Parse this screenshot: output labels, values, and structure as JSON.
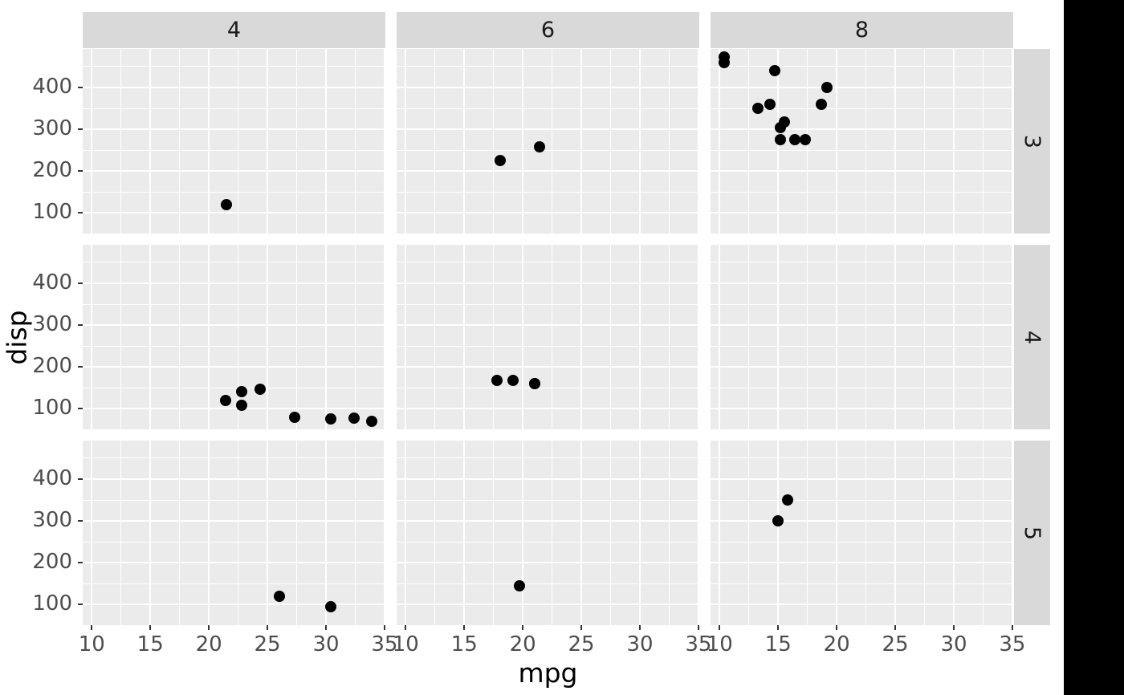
{
  "chart_data": {
    "type": "scatter",
    "title": "",
    "xlabel": "mpg",
    "ylabel": "disp",
    "facet": {
      "column_variable_levels": [
        "4",
        "6",
        "8"
      ],
      "row_variable_levels": [
        "3",
        "4",
        "5"
      ]
    },
    "x_axis": {
      "ticks": [
        10,
        15,
        20,
        25,
        30,
        35
      ],
      "minor_ticks": [
        12.5,
        17.5,
        22.5,
        27.5,
        32.5
      ],
      "domain": [
        9.225,
        35.075
      ]
    },
    "y_axis": {
      "ticks": [
        100,
        200,
        300,
        400
      ],
      "minor_ticks": [
        150,
        250,
        350,
        450
      ],
      "domain": [
        51.055,
        492.045
      ]
    },
    "grid": "on",
    "legend": "none",
    "points": [
      {
        "mpg": 21.5,
        "disp": 120.1,
        "cyl": "4",
        "gear": "3"
      },
      {
        "mpg": 22.8,
        "disp": 108.0,
        "cyl": "4",
        "gear": "4"
      },
      {
        "mpg": 24.4,
        "disp": 146.7,
        "cyl": "4",
        "gear": "4"
      },
      {
        "mpg": 22.8,
        "disp": 140.8,
        "cyl": "4",
        "gear": "4"
      },
      {
        "mpg": 32.4,
        "disp": 78.7,
        "cyl": "4",
        "gear": "4"
      },
      {
        "mpg": 30.4,
        "disp": 75.7,
        "cyl": "4",
        "gear": "4"
      },
      {
        "mpg": 33.9,
        "disp": 71.1,
        "cyl": "4",
        "gear": "4"
      },
      {
        "mpg": 27.3,
        "disp": 79.0,
        "cyl": "4",
        "gear": "4"
      },
      {
        "mpg": 21.4,
        "disp": 121.0,
        "cyl": "4",
        "gear": "4"
      },
      {
        "mpg": 26.0,
        "disp": 120.3,
        "cyl": "4",
        "gear": "5"
      },
      {
        "mpg": 30.4,
        "disp": 95.1,
        "cyl": "4",
        "gear": "5"
      },
      {
        "mpg": 21.4,
        "disp": 258.0,
        "cyl": "6",
        "gear": "3"
      },
      {
        "mpg": 18.1,
        "disp": 225.0,
        "cyl": "6",
        "gear": "3"
      },
      {
        "mpg": 21.0,
        "disp": 160.0,
        "cyl": "6",
        "gear": "4"
      },
      {
        "mpg": 21.0,
        "disp": 160.0,
        "cyl": "6",
        "gear": "4"
      },
      {
        "mpg": 19.2,
        "disp": 167.6,
        "cyl": "6",
        "gear": "4"
      },
      {
        "mpg": 17.8,
        "disp": 167.6,
        "cyl": "6",
        "gear": "4"
      },
      {
        "mpg": 19.7,
        "disp": 145.0,
        "cyl": "6",
        "gear": "5"
      },
      {
        "mpg": 18.7,
        "disp": 360.0,
        "cyl": "8",
        "gear": "3"
      },
      {
        "mpg": 14.3,
        "disp": 360.0,
        "cyl": "8",
        "gear": "3"
      },
      {
        "mpg": 16.4,
        "disp": 275.8,
        "cyl": "8",
        "gear": "3"
      },
      {
        "mpg": 17.3,
        "disp": 275.8,
        "cyl": "8",
        "gear": "3"
      },
      {
        "mpg": 15.2,
        "disp": 275.8,
        "cyl": "8",
        "gear": "3"
      },
      {
        "mpg": 10.4,
        "disp": 472.0,
        "cyl": "8",
        "gear": "3"
      },
      {
        "mpg": 10.4,
        "disp": 460.0,
        "cyl": "8",
        "gear": "3"
      },
      {
        "mpg": 14.7,
        "disp": 440.0,
        "cyl": "8",
        "gear": "3"
      },
      {
        "mpg": 15.5,
        "disp": 318.0,
        "cyl": "8",
        "gear": "3"
      },
      {
        "mpg": 15.2,
        "disp": 304.0,
        "cyl": "8",
        "gear": "3"
      },
      {
        "mpg": 13.3,
        "disp": 350.0,
        "cyl": "8",
        "gear": "3"
      },
      {
        "mpg": 19.2,
        "disp": 400.0,
        "cyl": "8",
        "gear": "3"
      },
      {
        "mpg": 15.8,
        "disp": 351.0,
        "cyl": "8",
        "gear": "5"
      },
      {
        "mpg": 15.0,
        "disp": 301.0,
        "cyl": "8",
        "gear": "5"
      }
    ]
  },
  "colors": {
    "figure_background": "#FFFFFF",
    "panel_background": "#EBEBEB",
    "strip_background": "#D9D9D9",
    "gridline": "#FFFFFF",
    "point": "#000000",
    "tick_mark": "#333333",
    "tick_label": "#4D4D4D",
    "strip_text": "#1A1A1A",
    "axis_title": "#000000",
    "right_band": "#000000"
  }
}
